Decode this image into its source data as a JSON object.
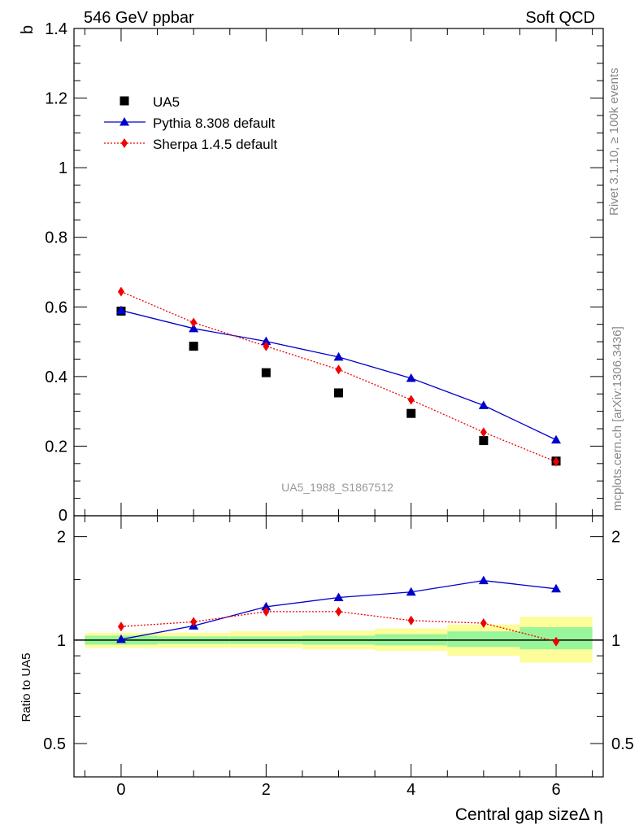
{
  "header": {
    "left": "546 GeV ppbar",
    "right": "Soft QCD"
  },
  "side_labels": {
    "top": "Rivet 3.1.10, ≥ 100k events",
    "bottom": "mcplots.cern.ch [arXiv:1306.3436]"
  },
  "chart_data": {
    "type": "line",
    "analysis_label": "UA5_1988_S1867512",
    "ylabel": "b",
    "ratio_ylabel": "Ratio to UA5",
    "xlabel": "Central gap sizeΔ η",
    "xlim": [
      -0.65,
      6.65
    ],
    "ylim": [
      0,
      1.4
    ],
    "ratio_ylim": [
      0.4,
      2.3
    ],
    "x_tick_labels": [
      "0",
      "2",
      "4",
      "6"
    ],
    "y_tick_labels": [
      "0",
      "0.2",
      "0.4",
      "0.6",
      "0.8",
      "1",
      "1.2",
      "1.4"
    ],
    "ratio_tick_labels": [
      "0.5",
      "1",
      "2"
    ],
    "x": [
      0,
      1,
      2,
      3,
      4,
      5,
      6
    ],
    "series": [
      {
        "name": "UA5",
        "marker": "square",
        "color": "#000000",
        "values": [
          0.588,
          0.487,
          0.411,
          0.353,
          0.294,
          0.216,
          0.157
        ]
      },
      {
        "name": "Pythia 8.308 default",
        "marker": "triangle",
        "color": "#0000cc",
        "values": [
          0.59,
          0.538,
          0.501,
          0.456,
          0.395,
          0.317,
          0.218
        ]
      },
      {
        "name": "Sherpa 1.4.5 default",
        "marker": "diamond",
        "color": "#ee0000",
        "values": [
          0.644,
          0.555,
          0.487,
          0.42,
          0.333,
          0.24,
          0.155
        ]
      }
    ],
    "ratios": [
      {
        "name": "Pythia 8.308 default",
        "values": [
          1.005,
          1.1,
          1.25,
          1.33,
          1.38,
          1.49,
          1.41
        ]
      },
      {
        "name": "Sherpa 1.4.5 default",
        "values": [
          1.095,
          1.13,
          1.21,
          1.21,
          1.14,
          1.12,
          0.99
        ]
      }
    ],
    "uncertainty_bands": [
      {
        "x": 0,
        "green": [
          0.97,
          1.03
        ],
        "yellow": [
          0.95,
          1.05
        ]
      },
      {
        "x": 1,
        "green": [
          0.975,
          1.025
        ],
        "yellow": [
          0.95,
          1.05
        ]
      },
      {
        "x": 2,
        "green": [
          0.975,
          1.025
        ],
        "yellow": [
          0.95,
          1.06
        ]
      },
      {
        "x": 3,
        "green": [
          0.97,
          1.03
        ],
        "yellow": [
          0.94,
          1.065
        ]
      },
      {
        "x": 4,
        "green": [
          0.965,
          1.04
        ],
        "yellow": [
          0.93,
          1.08
        ]
      },
      {
        "x": 5,
        "green": [
          0.955,
          1.06
        ],
        "yellow": [
          0.9,
          1.11
        ]
      },
      {
        "x": 6,
        "green": [
          0.94,
          1.09
        ],
        "yellow": [
          0.86,
          1.17
        ]
      }
    ],
    "band_colors": {
      "green": "#99f599",
      "yellow": "#fdfd9a"
    }
  }
}
